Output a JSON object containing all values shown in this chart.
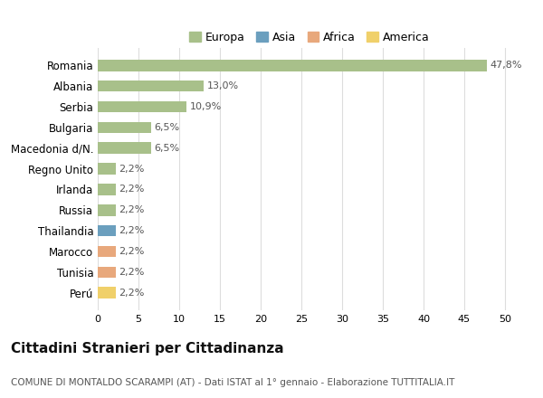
{
  "countries": [
    "Romania",
    "Albania",
    "Serbia",
    "Bulgaria",
    "Macedonia d/N.",
    "Regno Unito",
    "Irlanda",
    "Russia",
    "Thailandia",
    "Marocco",
    "Tunisia",
    "Perú"
  ],
  "values": [
    47.8,
    13.0,
    10.9,
    6.5,
    6.5,
    2.2,
    2.2,
    2.2,
    2.2,
    2.2,
    2.2,
    2.2
  ],
  "labels": [
    "47,8%",
    "13,0%",
    "10,9%",
    "6,5%",
    "6,5%",
    "2,2%",
    "2,2%",
    "2,2%",
    "2,2%",
    "2,2%",
    "2,2%",
    "2,2%"
  ],
  "continents": [
    "Europa",
    "Europa",
    "Europa",
    "Europa",
    "Europa",
    "Europa",
    "Europa",
    "Europa",
    "Asia",
    "Africa",
    "Africa",
    "America"
  ],
  "colors": {
    "Europa": "#a8c08a",
    "Asia": "#6b9fbe",
    "Africa": "#e8a87c",
    "America": "#f0d06a"
  },
  "legend_order": [
    "Europa",
    "Asia",
    "Africa",
    "America"
  ],
  "xlim": [
    0,
    52
  ],
  "xticks": [
    0,
    5,
    10,
    15,
    20,
    25,
    30,
    35,
    40,
    45,
    50
  ],
  "title": "Cittadini Stranieri per Cittadinanza",
  "subtitle": "COMUNE DI MONTALDO SCARAMPI (AT) - Dati ISTAT al 1° gennaio - Elaborazione TUTTITALIA.IT",
  "bg_color": "#ffffff",
  "grid_color": "#dddddd",
  "bar_height": 0.55,
  "label_fontsize": 8,
  "ytick_fontsize": 8.5,
  "xtick_fontsize": 8,
  "title_fontsize": 11,
  "subtitle_fontsize": 7.5,
  "legend_fontsize": 9
}
